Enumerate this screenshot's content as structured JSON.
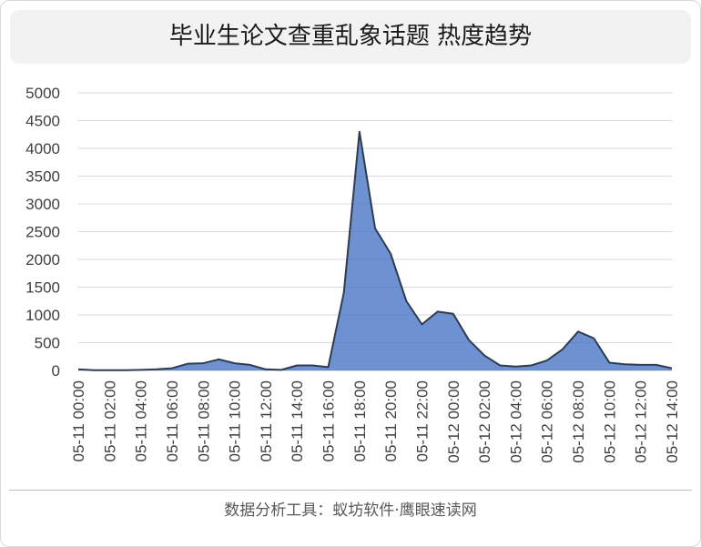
{
  "chart_data": {
    "type": "area",
    "title": "毕业生论文查重乱象话题 热度趋势",
    "xlabel": "",
    "ylabel": "",
    "ylim": [
      0,
      5000
    ],
    "yticks": [
      0,
      500,
      1000,
      1500,
      2000,
      2500,
      3000,
      3500,
      4000,
      4500,
      5000
    ],
    "grid": true,
    "legend": "none",
    "x": [
      "05-11 00:00",
      "05-11 01:00",
      "05-11 02:00",
      "05-11 03:00",
      "05-11 04:00",
      "05-11 05:00",
      "05-11 06:00",
      "05-11 07:00",
      "05-11 08:00",
      "05-11 09:00",
      "05-11 10:00",
      "05-11 11:00",
      "05-11 12:00",
      "05-11 13:00",
      "05-11 14:00",
      "05-11 15:00",
      "05-11 16:00",
      "05-11 17:00",
      "05-11 18:00",
      "05-11 19:00",
      "05-11 20:00",
      "05-11 21:00",
      "05-11 22:00",
      "05-11 23:00",
      "05-12 00:00",
      "05-12 01:00",
      "05-12 02:00",
      "05-12 03:00",
      "05-12 04:00",
      "05-12 05:00",
      "05-12 06:00",
      "05-12 07:00",
      "05-12 08:00",
      "05-12 09:00",
      "05-12 10:00",
      "05-12 11:00",
      "05-12 12:00",
      "05-12 13:00",
      "05-12 14:00"
    ],
    "tick_labels": [
      "05-11 00:00",
      "05-11 02:00",
      "05-11 04:00",
      "05-11 06:00",
      "05-11 08:00",
      "05-11 10:00",
      "05-11 12:00",
      "05-11 14:00",
      "05-11 16:00",
      "05-11 18:00",
      "05-11 20:00",
      "05-11 22:00",
      "05-12 00:00",
      "05-12 02:00",
      "05-12 04:00",
      "05-12 06:00",
      "05-12 08:00",
      "05-12 10:00",
      "05-12 12:00",
      "05-12 14:00"
    ],
    "series": [
      {
        "values": [
          20,
          5,
          5,
          5,
          10,
          20,
          40,
          120,
          130,
          200,
          130,
          100,
          20,
          10,
          90,
          90,
          60,
          1400,
          4300,
          2560,
          2100,
          1250,
          830,
          1060,
          1020,
          550,
          270,
          90,
          70,
          90,
          180,
          380,
          700,
          580,
          140,
          110,
          100,
          100,
          40
        ]
      }
    ],
    "colors": {
      "fill": "#4472c4",
      "line": "#2f3b4f",
      "grid": "#d9d9d9",
      "axis": "#bfbfbf",
      "text": "#404040"
    }
  },
  "footer": "数据分析工具：蚁坊软件·鹰眼速读网"
}
